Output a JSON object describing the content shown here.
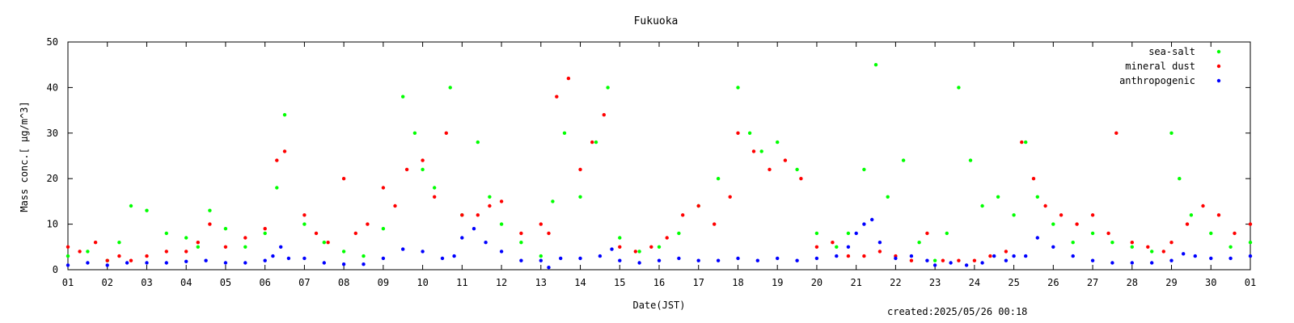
{
  "chart_data": {
    "type": "scatter",
    "title": "Fukuoka",
    "xlabel": "Date(JST)",
    "ylabel": "Mass conc.[ μg/m^3]",
    "xlim": [
      1,
      31
    ],
    "ylim": [
      0,
      50
    ],
    "y_ticks": [
      "0",
      "10",
      "20",
      "30",
      "40",
      "50"
    ],
    "x_ticks": [
      "01",
      "02",
      "03",
      "04",
      "05",
      "06",
      "07",
      "08",
      "09",
      "10",
      "11",
      "12",
      "13",
      "14",
      "15",
      "16",
      "17",
      "18",
      "19",
      "20",
      "21",
      "22",
      "23",
      "24",
      "25",
      "26",
      "27",
      "28",
      "29",
      "30",
      "01"
    ],
    "legend_position": "top-right",
    "grid": false,
    "series": [
      {
        "name": "sea-salt",
        "color": "#00ff00",
        "x": [
          1.0,
          1.5,
          2.0,
          2.3,
          2.6,
          3.0,
          3.5,
          4.0,
          4.3,
          4.6,
          5.0,
          5.5,
          6.0,
          6.3,
          6.5,
          7.0,
          7.5,
          8.0,
          8.5,
          9.0,
          9.5,
          9.8,
          10.0,
          10.3,
          10.7,
          11.0,
          11.4,
          11.7,
          12.0,
          12.5,
          13.0,
          13.3,
          13.6,
          14.0,
          14.4,
          14.7,
          15.0,
          15.5,
          16.0,
          16.5,
          17.0,
          17.5,
          18.0,
          18.3,
          18.6,
          19.0,
          19.5,
          20.0,
          20.5,
          20.8,
          21.2,
          21.5,
          21.8,
          22.2,
          22.6,
          23.0,
          23.3,
          23.6,
          23.9,
          24.2,
          24.6,
          25.0,
          25.3,
          25.6,
          26.0,
          26.5,
          27.0,
          27.5,
          28.0,
          28.5,
          29.0,
          29.2,
          29.5,
          30.0,
          30.5,
          31.0
        ],
        "values": [
          3,
          4,
          2,
          6,
          14,
          13,
          8,
          7,
          5,
          13,
          9,
          5,
          8,
          18,
          34,
          10,
          6,
          4,
          3,
          9,
          38,
          30,
          22,
          18,
          40,
          12,
          28,
          16,
          10,
          6,
          3,
          15,
          30,
          16,
          28,
          40,
          7,
          4,
          5,
          8,
          14,
          20,
          40,
          30,
          26,
          28,
          22,
          8,
          5,
          8,
          22,
          45,
          16,
          24,
          6,
          2,
          8,
          40,
          24,
          14,
          16,
          12,
          28,
          16,
          10,
          6,
          8,
          6,
          5,
          4,
          30,
          20,
          12,
          8,
          5,
          6
        ]
      },
      {
        "name": "mineral dust",
        "color": "#ff0000",
        "x": [
          1.0,
          1.3,
          1.7,
          2.0,
          2.3,
          2.6,
          3.0,
          3.5,
          4.0,
          4.3,
          4.6,
          5.0,
          5.5,
          6.0,
          6.3,
          6.5,
          7.0,
          7.3,
          7.6,
          8.0,
          8.3,
          8.6,
          9.0,
          9.3,
          9.6,
          10.0,
          10.3,
          10.6,
          11.0,
          11.4,
          11.7,
          12.0,
          12.5,
          13.0,
          13.2,
          13.4,
          13.7,
          14.0,
          14.3,
          14.6,
          15.0,
          15.4,
          15.8,
          16.2,
          16.6,
          17.0,
          17.4,
          17.8,
          18.0,
          18.4,
          18.8,
          19.2,
          19.6,
          20.0,
          20.4,
          20.8,
          21.2,
          21.6,
          22.0,
          22.4,
          22.8,
          23.2,
          23.6,
          24.0,
          24.4,
          24.8,
          25.2,
          25.5,
          25.8,
          26.2,
          26.6,
          27.0,
          27.4,
          27.6,
          28.0,
          28.4,
          28.8,
          29.0,
          29.4,
          29.8,
          30.2,
          30.6,
          31.0
        ],
        "values": [
          5,
          4,
          6,
          2,
          3,
          2,
          3,
          4,
          4,
          6,
          10,
          5,
          7,
          9,
          24,
          26,
          12,
          8,
          6,
          20,
          8,
          10,
          18,
          14,
          22,
          24,
          16,
          30,
          12,
          12,
          14,
          15,
          8,
          10,
          8,
          38,
          42,
          22,
          28,
          34,
          5,
          4,
          5,
          7,
          12,
          14,
          10,
          16,
          30,
          26,
          22,
          24,
          20,
          5,
          6,
          3,
          3,
          4,
          3,
          2,
          8,
          2,
          2,
          2,
          3,
          4,
          28,
          20,
          14,
          12,
          10,
          12,
          8,
          30,
          6,
          5,
          4,
          6,
          10,
          14,
          12,
          8,
          10
        ]
      },
      {
        "name": "anthropogenic",
        "color": "#0000ff",
        "x": [
          1.0,
          1.5,
          2.0,
          2.5,
          3.0,
          3.5,
          4.0,
          4.5,
          5.0,
          5.5,
          6.0,
          6.2,
          6.4,
          6.6,
          7.0,
          7.5,
          8.0,
          8.5,
          9.0,
          9.5,
          10.0,
          10.5,
          10.8,
          11.0,
          11.3,
          11.6,
          12.0,
          12.5,
          13.0,
          13.2,
          13.5,
          14.0,
          14.5,
          14.8,
          15.0,
          15.5,
          16.0,
          16.5,
          17.0,
          17.5,
          18.0,
          18.5,
          19.0,
          19.5,
          20.0,
          20.5,
          20.8,
          21.0,
          21.2,
          21.4,
          21.6,
          22.0,
          22.4,
          22.8,
          23.0,
          23.4,
          23.8,
          24.2,
          24.5,
          24.8,
          25.0,
          25.3,
          25.6,
          26.0,
          26.5,
          27.0,
          27.5,
          28.0,
          28.5,
          29.0,
          29.3,
          29.6,
          30.0,
          30.5,
          31.0
        ],
        "values": [
          1,
          1.5,
          1,
          1.5,
          1.5,
          1.5,
          1.8,
          2,
          1.5,
          1.5,
          2,
          3,
          5,
          2.5,
          2.5,
          1.5,
          1.2,
          1.2,
          2.5,
          4.5,
          4,
          2.5,
          3,
          7,
          9,
          6,
          4,
          2,
          2,
          0.5,
          2.5,
          2.5,
          3,
          4.5,
          2,
          1.5,
          2,
          2.5,
          2,
          2,
          2.5,
          2,
          2.5,
          2,
          2.5,
          3,
          5,
          8,
          10,
          11,
          6,
          2.5,
          3,
          2,
          1,
          1.5,
          1,
          1.5,
          3,
          2,
          3,
          3,
          7,
          5,
          3,
          2,
          1.5,
          1.5,
          1.5,
          2,
          3.5,
          3,
          2.5,
          2.5,
          3
        ]
      }
    ],
    "footer": "created:2025/05/26 00:18"
  }
}
